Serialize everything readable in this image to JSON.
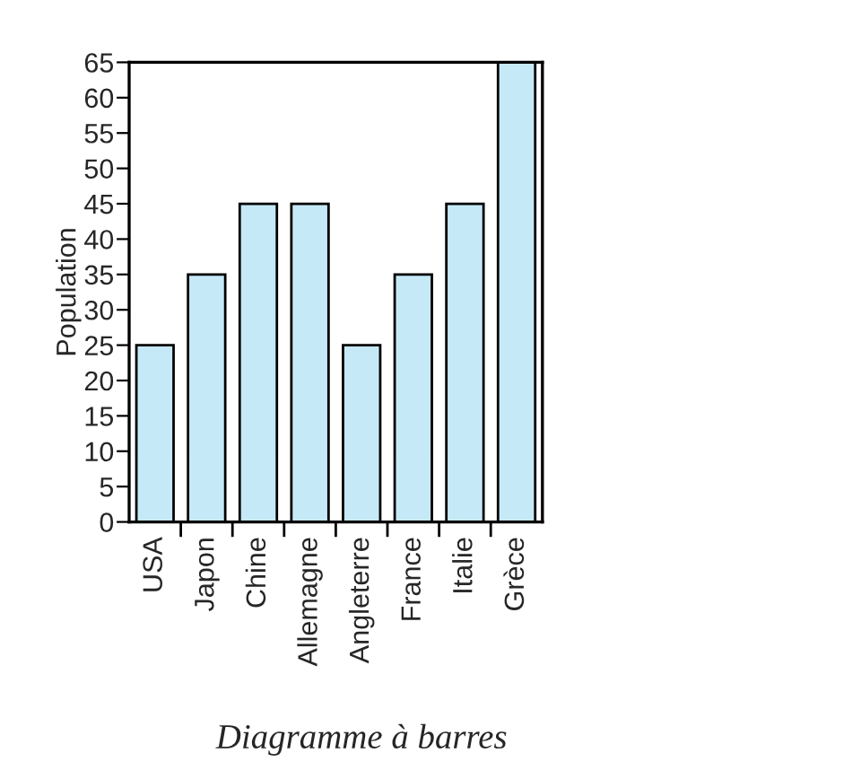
{
  "chart_data": {
    "type": "bar",
    "ylabel": "Population",
    "categories": [
      "USA",
      "Japon",
      "Chine",
      "Allemagne",
      "Angleterre",
      "France",
      "Italie",
      "Grèce"
    ],
    "values": [
      25,
      35,
      45,
      45,
      25,
      35,
      45,
      65
    ],
    "color": "#c6e9f8",
    "ylim": [
      0,
      65
    ],
    "yticks": [
      0,
      5,
      10,
      15,
      20,
      25,
      30,
      35,
      40,
      45,
      50,
      55,
      60,
      65
    ],
    "grid": false,
    "legend": false,
    "annotations": [
      "Diagramme à barres"
    ]
  }
}
